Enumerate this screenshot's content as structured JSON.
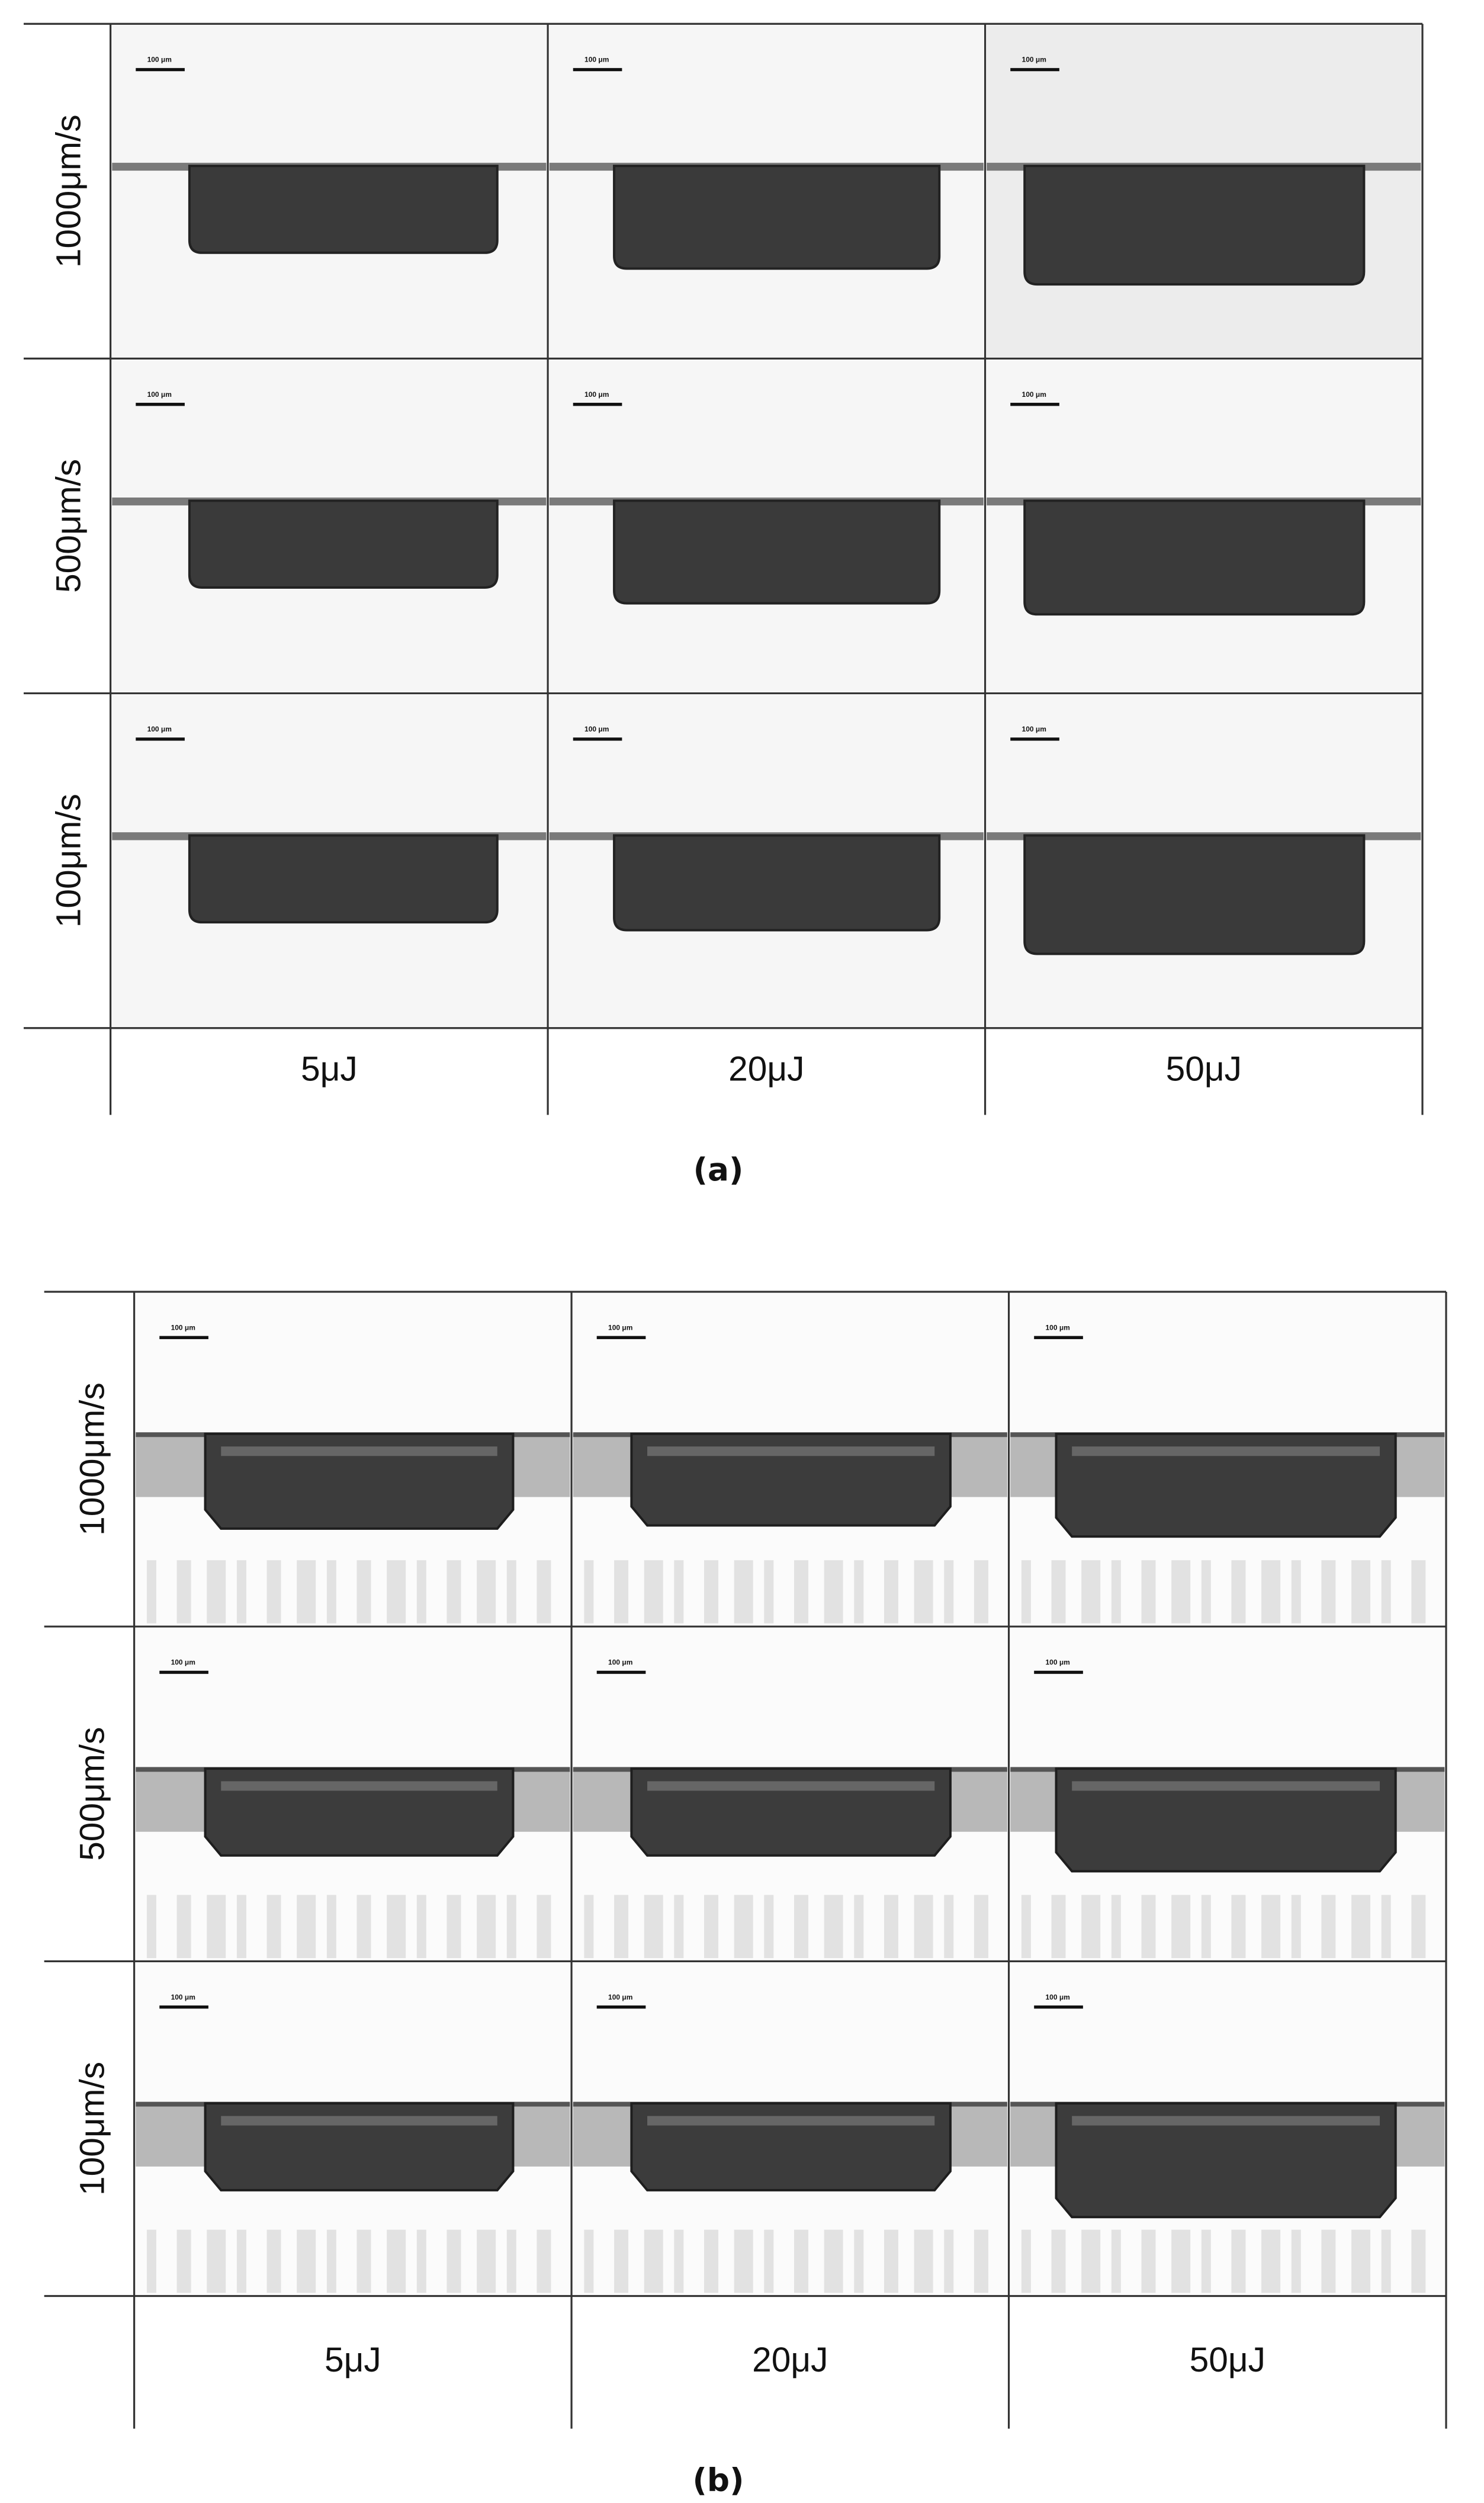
{
  "panels": [
    {
      "label": "(a)",
      "rows": [
        "1000μm/s",
        "500μm/s",
        "100μm/s"
      ],
      "columns": [
        "5μJ",
        "20μJ",
        "50μJ"
      ],
      "scale_bar": "100 μm"
    },
    {
      "label": "(b)",
      "rows": [
        "1000μm/s",
        "500μm/s",
        "100μm/s"
      ],
      "columns": [
        "5μJ",
        "20μJ",
        "50μJ"
      ],
      "scale_bar": "100 μm"
    }
  ]
}
